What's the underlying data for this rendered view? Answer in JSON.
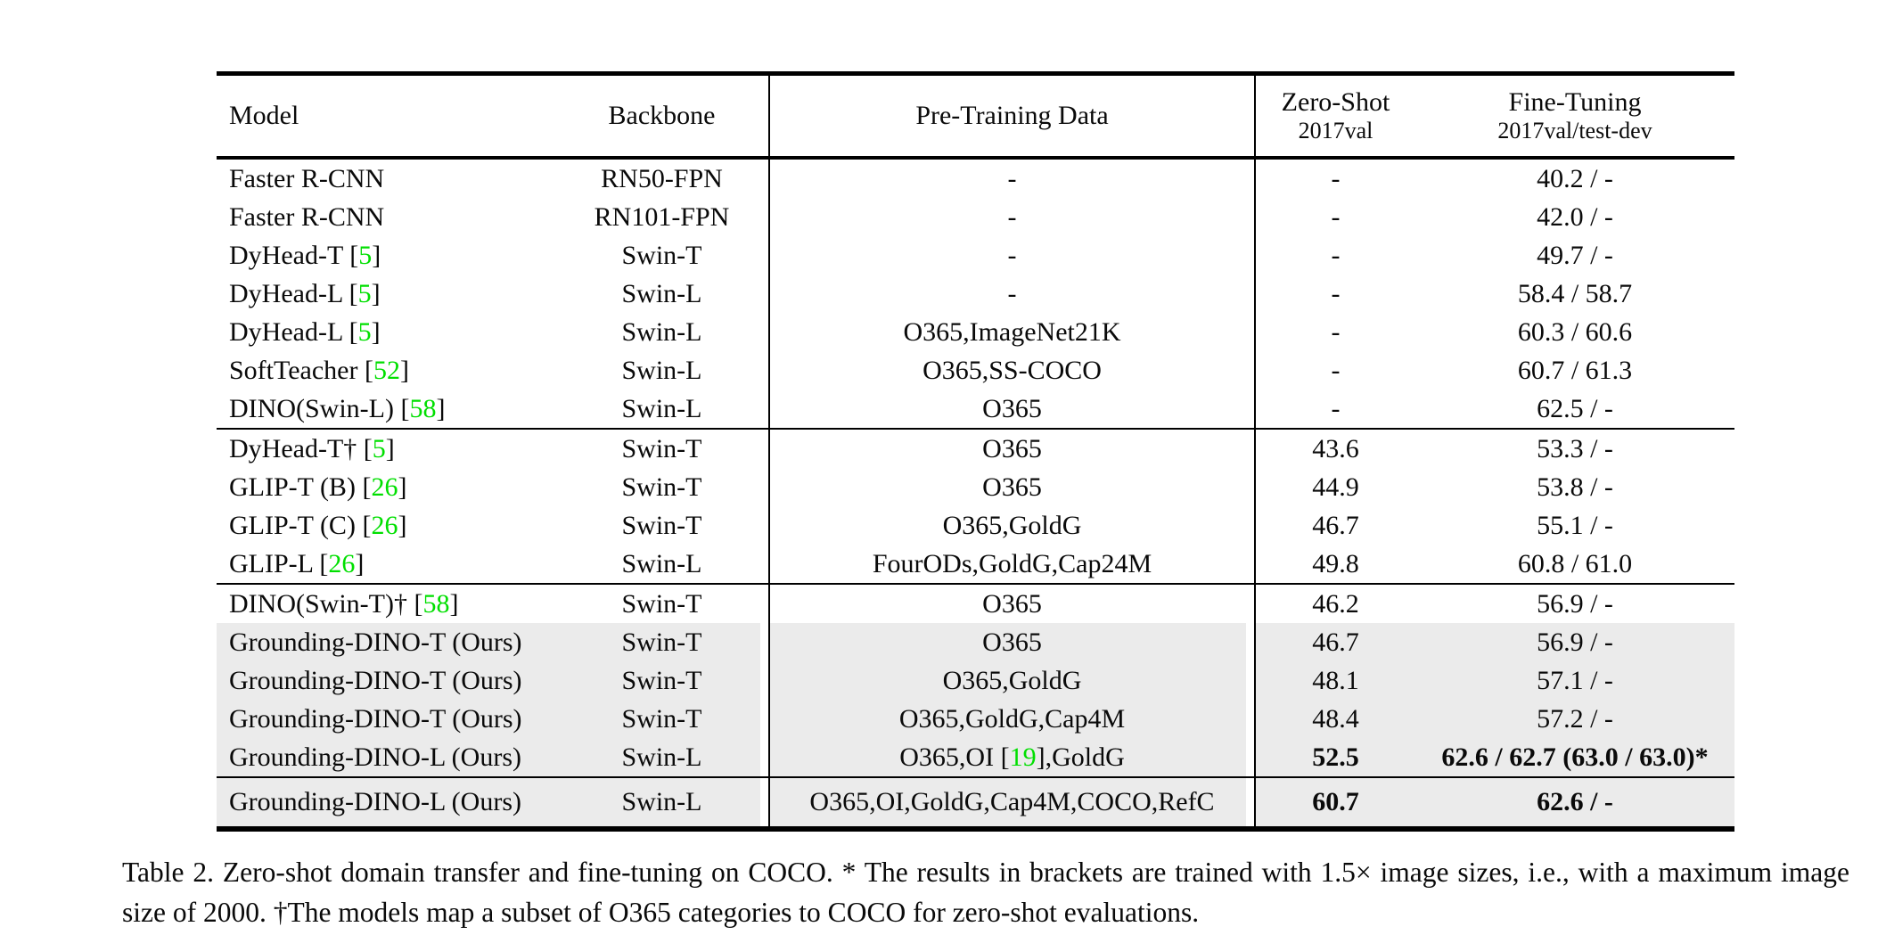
{
  "colors": {
    "citation_green": "#00df00",
    "row_highlight_gray": "#ebebeb"
  },
  "table": {
    "headers": {
      "model": "Model",
      "backbone": "Backbone",
      "pretraining": "Pre-Training Data",
      "zero_shot": {
        "line1": "Zero-Shot",
        "line2": "2017val"
      },
      "fine_tuning": {
        "line1": "Fine-Tuning",
        "line2": "2017val/test-dev"
      }
    },
    "sections": [
      {
        "rows": [
          {
            "model": "Faster R-CNN",
            "backbone": "RN50-FPN",
            "pretraining": "-",
            "zero_shot": "-",
            "fine_tuning": "40.2 / -",
            "highlighted": false,
            "zero_shot_bold": false,
            "fine_tuning_bold": false
          },
          {
            "model": "Faster R-CNN",
            "backbone": "RN101-FPN",
            "pretraining": "-",
            "zero_shot": "-",
            "fine_tuning": "42.0 / -",
            "highlighted": false,
            "zero_shot_bold": false,
            "fine_tuning_bold": false
          },
          {
            "model": "DyHead-T [5]",
            "backbone": "Swin-T",
            "pretraining": "-",
            "zero_shot": "-",
            "fine_tuning": "49.7 / -",
            "highlighted": false,
            "zero_shot_bold": false,
            "fine_tuning_bold": false
          },
          {
            "model": "DyHead-L [5]",
            "backbone": "Swin-L",
            "pretraining": "-",
            "zero_shot": "-",
            "fine_tuning": "58.4 / 58.7",
            "highlighted": false,
            "zero_shot_bold": false,
            "fine_tuning_bold": false
          },
          {
            "model": "DyHead-L [5]",
            "backbone": "Swin-L",
            "pretraining": "O365,ImageNet21K",
            "zero_shot": "-",
            "fine_tuning": "60.3 / 60.6",
            "highlighted": false,
            "zero_shot_bold": false,
            "fine_tuning_bold": false
          },
          {
            "model": "SoftTeacher [52]",
            "backbone": "Swin-L",
            "pretraining": "O365,SS-COCO",
            "zero_shot": "-",
            "fine_tuning": "60.7 / 61.3",
            "highlighted": false,
            "zero_shot_bold": false,
            "fine_tuning_bold": false
          },
          {
            "model": "DINO(Swin-L) [58]",
            "backbone": "Swin-L",
            "pretraining": "O365",
            "zero_shot": "-",
            "fine_tuning": "62.5 / -",
            "highlighted": false,
            "zero_shot_bold": false,
            "fine_tuning_bold": false
          }
        ]
      },
      {
        "rows": [
          {
            "model": "DyHead-T† [5]",
            "backbone": "Swin-T",
            "pretraining": "O365",
            "zero_shot": "43.6",
            "fine_tuning": "53.3 / -",
            "highlighted": false,
            "zero_shot_bold": false,
            "fine_tuning_bold": false
          },
          {
            "model": "GLIP-T (B) [26]",
            "backbone": "Swin-T",
            "pretraining": "O365",
            "zero_shot": "44.9",
            "fine_tuning": "53.8 / -",
            "highlighted": false,
            "zero_shot_bold": false,
            "fine_tuning_bold": false
          },
          {
            "model": "GLIP-T (C) [26]",
            "backbone": "Swin-T",
            "pretraining": "O365,GoldG",
            "zero_shot": "46.7",
            "fine_tuning": "55.1 / -",
            "highlighted": false,
            "zero_shot_bold": false,
            "fine_tuning_bold": false
          },
          {
            "model": "GLIP-L [26]",
            "backbone": "Swin-L",
            "pretraining": "FourODs,GoldG,Cap24M",
            "zero_shot": "49.8",
            "fine_tuning": "60.8 / 61.0",
            "highlighted": false,
            "zero_shot_bold": false,
            "fine_tuning_bold": false
          }
        ]
      },
      {
        "rows": [
          {
            "model": "DINO(Swin-T)† [58]",
            "backbone": "Swin-T",
            "pretraining": "O365",
            "zero_shot": "46.2",
            "fine_tuning": "56.9 / -",
            "highlighted": false,
            "zero_shot_bold": false,
            "fine_tuning_bold": false
          },
          {
            "model": "Grounding-DINO-T (Ours)",
            "backbone": "Swin-T",
            "pretraining": "O365",
            "zero_shot": "46.7",
            "fine_tuning": "56.9 / -",
            "highlighted": true,
            "zero_shot_bold": false,
            "fine_tuning_bold": false
          },
          {
            "model": "Grounding-DINO-T (Ours)",
            "backbone": "Swin-T",
            "pretraining": "O365,GoldG",
            "zero_shot": "48.1",
            "fine_tuning": "57.1 / -",
            "highlighted": true,
            "zero_shot_bold": false,
            "fine_tuning_bold": false
          },
          {
            "model": "Grounding-DINO-T (Ours)",
            "backbone": "Swin-T",
            "pretraining": "O365,GoldG,Cap4M",
            "zero_shot": "48.4",
            "fine_tuning": "57.2 / -",
            "highlighted": true,
            "zero_shot_bold": false,
            "fine_tuning_bold": false
          },
          {
            "model": "Grounding-DINO-L (Ours)",
            "backbone": "Swin-L",
            "pretraining": "O365,OI [19],GoldG",
            "zero_shot": "52.5",
            "fine_tuning": "62.6 / 62.7 (63.0 / 63.0)*",
            "highlighted": true,
            "zero_shot_bold": true,
            "fine_tuning_bold": true
          }
        ]
      },
      {
        "rows": [
          {
            "model": "Grounding-DINO-L (Ours)",
            "backbone": "Swin-L",
            "pretraining": "O365,OI,GoldG,Cap4M,COCO,RefC",
            "zero_shot": "60.7",
            "fine_tuning": "62.6 / -",
            "highlighted": true,
            "zero_shot_bold": true,
            "fine_tuning_bold": true
          }
        ]
      }
    ]
  },
  "caption": "Table 2.  Zero-shot domain transfer and fine-tuning on COCO. * The results in brackets are trained with 1.5× image sizes, i.e., with a maximum image size of 2000. †The models map a subset of O365 categories to COCO for zero-shot evaluations."
}
